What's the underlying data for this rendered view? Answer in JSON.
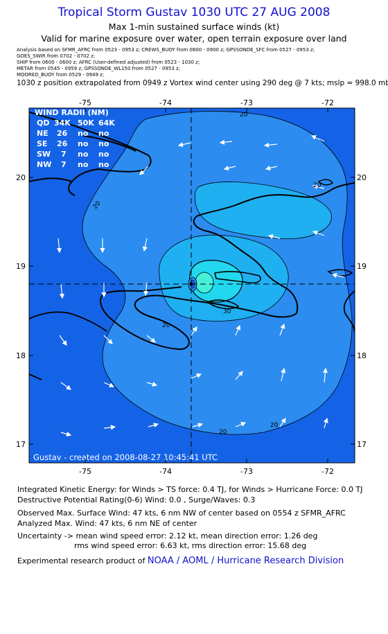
{
  "header": {
    "title": "Tropical Storm Gustav 1030 UTC 27 AUG 2008",
    "subtitle1": "Max 1-min sustained surface winds (kt)",
    "subtitle2": "Valid for marine exposure over water, open terrain exposure over land"
  },
  "analysis_lines": [
    "Analysis based on  SFMR_AFRC from 0523 - 0953 z;  CREWS_BUOY from 0600 - 0900 z;  GPSSONDE_SFC from 0527 - 0953 z;",
    "GOES_SWIR from 0702 - 0702 z;",
    "SHIP from 0600 - 0600 z;  AFRC (User-defined adjusted) from 0523 - 1030 z;",
    "METAR from 0545 - 0959 z;  GPSSONDE_WL150 from 0527 - 0953 z;",
    "MOORED_BUOY from 0529 - 0949 z;"
  ],
  "position_note": "1030 z position extrapolated from 0949 z Vortex wind center using 290 deg @ 7 kts; mslp = 998.0 mb",
  "map": {
    "lon_ticks": [
      "-75",
      "-74",
      "-73",
      "-72"
    ],
    "lat_ticks": [
      "20",
      "19",
      "18",
      "17"
    ],
    "center": {
      "lon": -73.72,
      "lat": 18.78
    },
    "contour_labels": [
      "20",
      "20",
      "20",
      "20",
      "20",
      "30",
      "20"
    ],
    "created_label": "Gustav - created on 2008-08-27 10:45:41 UTC",
    "wind_radii": {
      "title": "WIND RADII (NM)",
      "header": [
        "QD",
        "34K",
        "50K",
        "64K"
      ],
      "rows": [
        [
          "NE",
          "26",
          "no",
          "no"
        ],
        [
          "SE",
          "26",
          "no",
          "no"
        ],
        [
          "SW",
          "7",
          "no",
          "no"
        ],
        [
          "NW",
          "7",
          "no",
          "no"
        ]
      ]
    },
    "colors": {
      "background": "#1463e6",
      "band_20": "#2c8cf0",
      "band_30": "#1fb0f2",
      "band_40": "#22d8ee",
      "band_45": "#44f0d8",
      "land": "#000000",
      "arrow": "#ffffff"
    }
  },
  "footer": {
    "ike": "Integrated Kinetic Energy:  for Winds > TS force: 0.4 TJ,  for Winds > Hurricane Force: 0.0 TJ",
    "dpr": "Destructive Potential Rating(0-6)   Wind: 0.0 , Surge/Waves: 0.3",
    "observed": "Observed Max. Surface Wind: 47 kts, 6 nm NW of center based on 0554 z SFMR_AFRC",
    "analyzed": "Analyzed Max. Wind: 47 kts, 6 nm NE of center",
    "uncertainty1": "Uncertainty -> mean wind speed error: 2.12 kt,   mean direction error: 1.26 deg",
    "uncertainty2": "rms wind speed error: 6.63 kt,   rms direction error: 15.68 deg",
    "credit_prefix": "Experimental research product of ",
    "credit_link": "NOAA / AOML / Hurricane Research Division"
  }
}
